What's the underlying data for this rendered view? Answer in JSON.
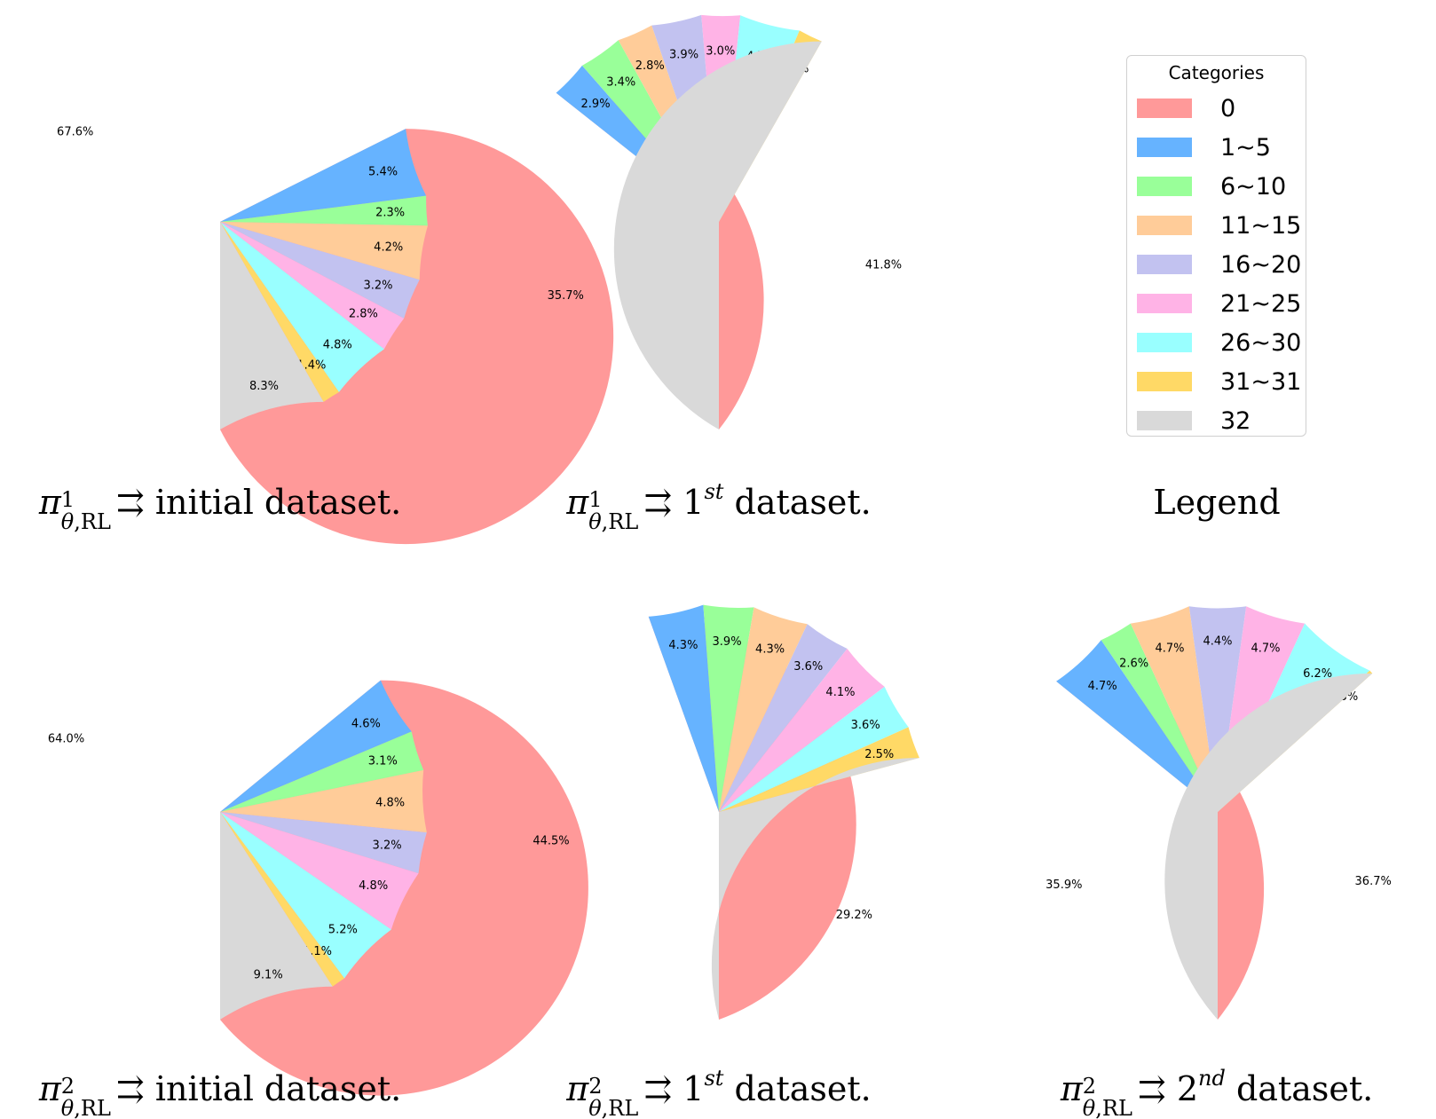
{
  "legend": {
    "title": "Categories",
    "panel_caption": "Legend",
    "entries": [
      {
        "label": "0",
        "color": "#ff9999"
      },
      {
        "label": "1~5",
        "color": "#66b3ff"
      },
      {
        "label": "6~10",
        "color": "#99ff99"
      },
      {
        "label": "11~15",
        "color": "#ffcc99"
      },
      {
        "label": "16~20",
        "color": "#c2c2f0"
      },
      {
        "label": "21~25",
        "color": "#ffb3e6"
      },
      {
        "label": "26~30",
        "color": "#99ffff"
      },
      {
        "label": "31~31",
        "color": "#ffd966"
      },
      {
        "label": "32",
        "color": "#d9d9d9"
      }
    ]
  },
  "chart_data": [
    {
      "type": "pie",
      "caption": {
        "policy_sup": "1",
        "policy_sub_theta": "θ",
        "policy_sub_rest": ",RL",
        "arrow": "⇉",
        "ordinal_num": "",
        "ordinal_sup": "",
        "rest": "initial dataset."
      },
      "categories": [
        "0",
        "1~5",
        "6~10",
        "11~15",
        "16~20",
        "21~25",
        "26~30",
        "31~31",
        "32"
      ],
      "values": [
        67.6,
        5.4,
        2.3,
        4.2,
        3.2,
        2.8,
        4.8,
        1.4,
        8.3
      ],
      "labels": [
        "67.6%",
        "5.4%",
        "2.3%",
        "4.2%",
        "3.2%",
        "2.8%",
        "4.8%",
        "1.4%",
        "8.3%"
      ]
    },
    {
      "type": "pie",
      "caption": {
        "policy_sup": "1",
        "policy_sub_theta": "θ",
        "policy_sub_rest": ",RL",
        "arrow": "⇉",
        "ordinal_num": "1",
        "ordinal_sup": "st",
        "rest": "dataset."
      },
      "categories": [
        "0",
        "1~5",
        "6~10",
        "11~15",
        "16~20",
        "21~25",
        "26~30",
        "31~31",
        "32"
      ],
      "values": [
        35.7,
        2.9,
        3.4,
        2.8,
        3.9,
        3.0,
        4.7,
        1.9,
        41.8
      ],
      "labels": [
        "35.7%",
        "2.9%",
        "3.4%",
        "2.8%",
        "3.9%",
        "3.0%",
        "4.7%",
        "1.9%",
        "41.8%"
      ]
    },
    {
      "type": "pie",
      "caption": {
        "policy_sup": "2",
        "policy_sub_theta": "θ",
        "policy_sub_rest": ",RL",
        "arrow": "⇉",
        "ordinal_num": "",
        "ordinal_sup": "",
        "rest": "initial dataset."
      },
      "categories": [
        "0",
        "1~5",
        "6~10",
        "11~15",
        "16~20",
        "21~25",
        "26~30",
        "31~31",
        "32"
      ],
      "values": [
        64.0,
        4.6,
        3.1,
        4.8,
        3.2,
        4.8,
        5.2,
        1.1,
        9.1
      ],
      "labels": [
        "64.0%",
        "4.6%",
        "3.1%",
        "4.8%",
        "3.2%",
        "4.8%",
        "5.2%",
        "1.1%",
        "9.1%"
      ]
    },
    {
      "type": "pie",
      "caption": {
        "policy_sup": "2",
        "policy_sub_theta": "θ",
        "policy_sub_rest": ",RL",
        "arrow": "⇉",
        "ordinal_num": "1",
        "ordinal_sup": "st",
        "rest": "dataset."
      },
      "categories": [
        "0",
        "1~5",
        "6~10",
        "11~15",
        "16~20",
        "21~25",
        "26~30",
        "31~31",
        "32"
      ],
      "values": [
        44.5,
        4.3,
        3.9,
        4.3,
        3.6,
        4.1,
        3.6,
        2.5,
        29.2
      ],
      "labels": [
        "44.5%",
        "4.3%",
        "3.9%",
        "4.3%",
        "3.6%",
        "4.1%",
        "3.6%",
        "2.5%",
        "29.2%"
      ]
    },
    {
      "type": "pie",
      "caption": {
        "policy_sup": "2",
        "policy_sub_theta": "θ",
        "policy_sub_rest": ",RL",
        "arrow": "⇉",
        "ordinal_num": "2",
        "ordinal_sup": "nd",
        "rest": "dataset."
      },
      "categories": [
        "0",
        "1~5",
        "6~10",
        "11~15",
        "16~20",
        "21~25",
        "26~30",
        "31~31",
        "32"
      ],
      "values": [
        35.9,
        4.7,
        2.6,
        4.7,
        4.4,
        4.7,
        6.2,
        0.3,
        36.7
      ],
      "labels": [
        "35.9%",
        "4.7%",
        "2.6%",
        "4.7%",
        "4.4%",
        "4.7%",
        "6.2%",
        "0.3%",
        "36.7%"
      ]
    }
  ]
}
